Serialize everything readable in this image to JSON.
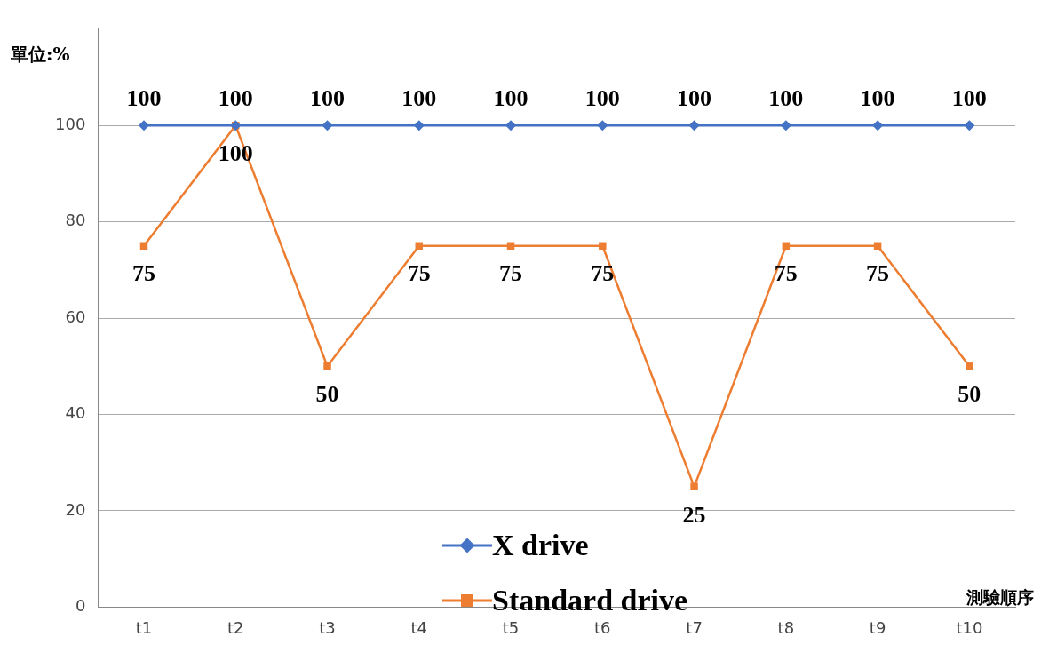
{
  "chart_data": {
    "type": "line",
    "ylabel": "單位:%",
    "xlabel": "測驗順序",
    "categories": [
      "t1",
      "t2",
      "t3",
      "t4",
      "t5",
      "t6",
      "t7",
      "t8",
      "t9",
      "t10"
    ],
    "series": [
      {
        "name": "X drive",
        "color": "#4472c4",
        "marker": "diamond",
        "values": [
          100,
          100,
          100,
          100,
          100,
          100,
          100,
          100,
          100,
          100
        ]
      },
      {
        "name": "Standard drive",
        "color": "#ed7d31",
        "marker": "square",
        "values": [
          75,
          100,
          50,
          75,
          75,
          75,
          25,
          75,
          75,
          50
        ]
      }
    ],
    "ylim": [
      0,
      120
    ],
    "yticks": [
      0,
      20,
      40,
      60,
      80,
      100
    ],
    "grid": "y",
    "legend": "bottom",
    "data_labels": true
  }
}
